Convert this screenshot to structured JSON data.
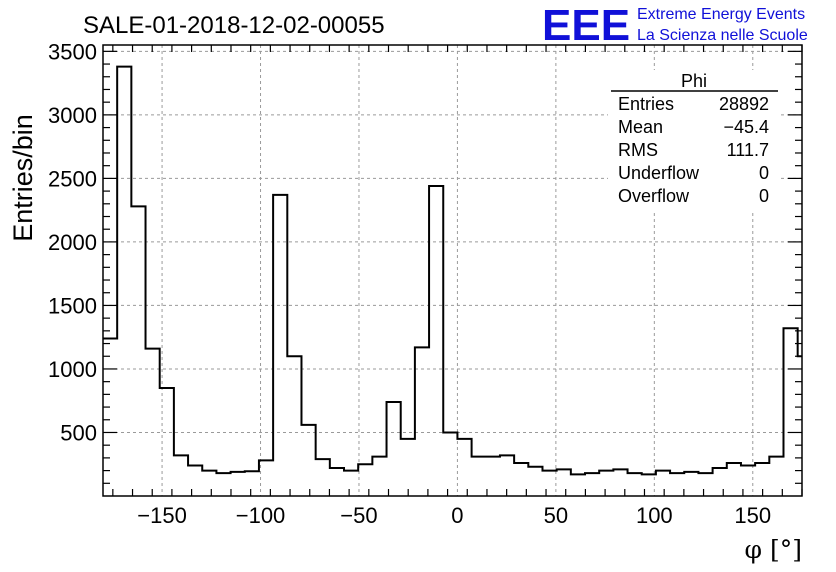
{
  "chart_data": {
    "type": "bar",
    "title": "SALE-01-2018-12-02-00055",
    "xlabel": "φ [°]",
    "ylabel": "Entries/bin",
    "xlim": [
      -180,
      175
    ],
    "ylim": [
      0,
      3550
    ],
    "bin_width": 7.2,
    "x_ticks": [
      -150,
      -100,
      -50,
      0,
      50,
      100,
      150
    ],
    "x_tick_labels": [
      "−150",
      "−100",
      "−50",
      "0",
      "50",
      "100",
      "150"
    ],
    "y_ticks": [
      500,
      1000,
      1500,
      2000,
      2500,
      3000,
      3500
    ],
    "y_tick_labels": [
      "500",
      "1000",
      "1500",
      "2000",
      "2500",
      "3000",
      "3500"
    ],
    "grid": true,
    "bin_edges_start": -180,
    "values": [
      1240,
      3380,
      2280,
      1160,
      850,
      320,
      240,
      200,
      180,
      190,
      195,
      280,
      2370,
      1100,
      560,
      290,
      220,
      200,
      250,
      310,
      740,
      450,
      1170,
      2440,
      500,
      450,
      310,
      310,
      320,
      260,
      230,
      200,
      210,
      170,
      180,
      200,
      210,
      180,
      170,
      200,
      180,
      190,
      180,
      220,
      260,
      240,
      260,
      310,
      1320,
      1100
    ]
  },
  "branding": {
    "logo_text": "EEE",
    "line1": "Extreme Energy Events",
    "line2": "La Scienza nelle Scuole"
  },
  "stats_box": {
    "name": "Phi",
    "rows": [
      {
        "label": "Entries",
        "value": "28892"
      },
      {
        "label": "Mean",
        "value": "−45.4"
      },
      {
        "label": "RMS",
        "value": "111.7"
      },
      {
        "label": "Underflow",
        "value": "0"
      },
      {
        "label": "Overflow",
        "value": "0"
      }
    ]
  }
}
